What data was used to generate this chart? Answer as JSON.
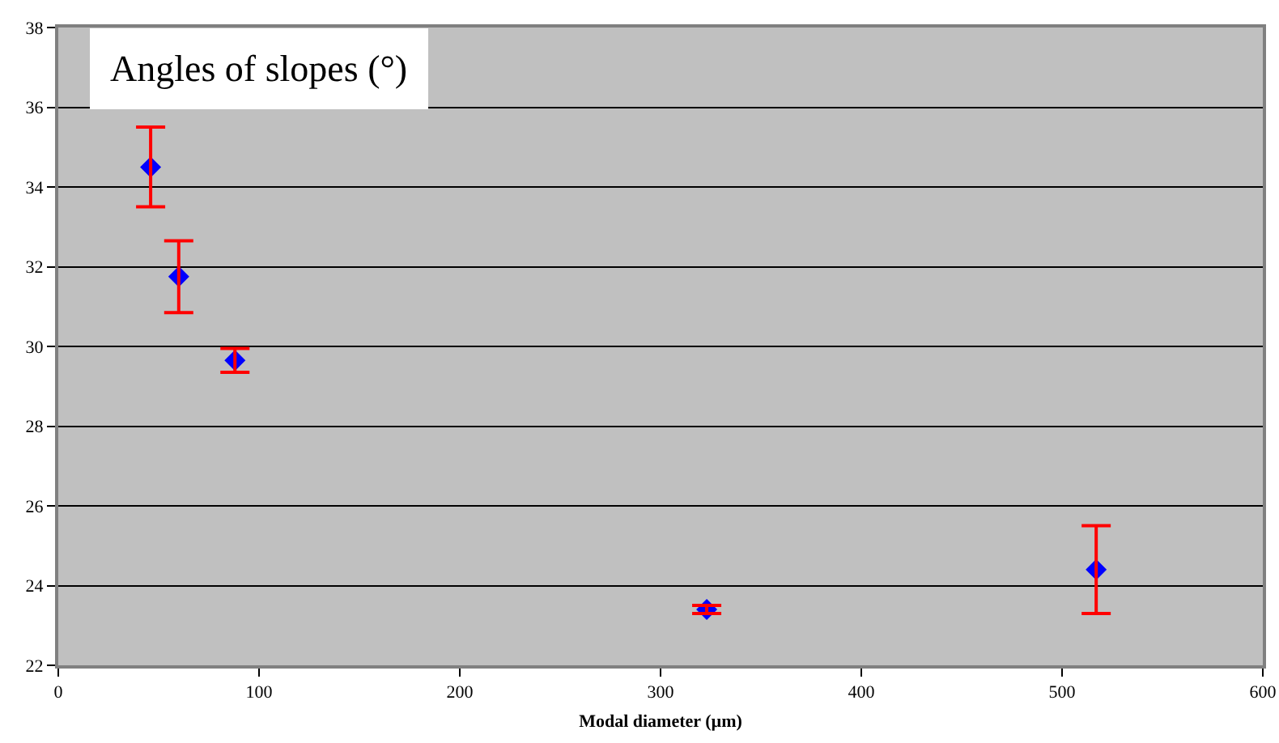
{
  "chart_data": {
    "type": "scatter",
    "title": "Angles of slopes (°)",
    "xlabel": "Modal diameter (µm)",
    "x": [
      46,
      60,
      88,
      323,
      517
    ],
    "series": [
      {
        "color": "#0000ff",
        "values": [
          34.5,
          31.75,
          29.65,
          23.4,
          24.4
        ],
        "errors": [
          1.0,
          0.9,
          0.3,
          0.1,
          1.1
        ]
      }
    ],
    "xlim": [
      0,
      600
    ],
    "xticks": [
      0,
      100,
      200,
      300,
      400,
      500,
      600
    ],
    "ylim": [
      22,
      38
    ],
    "yticks": [
      22,
      24,
      26,
      28,
      30,
      32,
      34,
      36,
      38
    ],
    "grid": "y",
    "marker": "diamond"
  }
}
